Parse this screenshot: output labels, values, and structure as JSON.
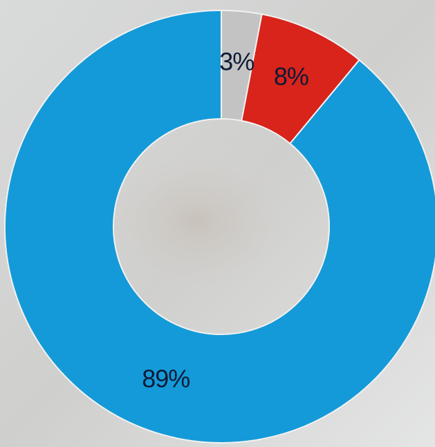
{
  "chart_data": {
    "type": "donut",
    "values": [
      3,
      8,
      89
    ],
    "value_labels": [
      "3%",
      "8%",
      "89%"
    ],
    "colors": [
      "#c3c3c3",
      "#d8241b",
      "#149ad8"
    ]
  }
}
